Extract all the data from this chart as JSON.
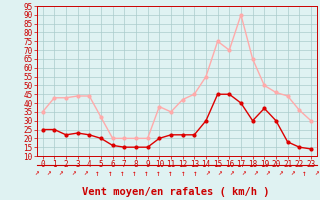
{
  "hours": [
    0,
    1,
    2,
    3,
    4,
    5,
    6,
    7,
    8,
    9,
    10,
    11,
    12,
    13,
    14,
    15,
    16,
    17,
    18,
    19,
    20,
    21,
    22,
    23
  ],
  "rafales": [
    35,
    43,
    43,
    44,
    44,
    32,
    20,
    20,
    20,
    20,
    38,
    35,
    42,
    45,
    55,
    75,
    70,
    90,
    65,
    50,
    46,
    44,
    36,
    30
  ],
  "moyen": [
    25,
    25,
    22,
    23,
    22,
    20,
    16,
    15,
    15,
    15,
    20,
    22,
    22,
    22,
    30,
    45,
    45,
    40,
    30,
    37,
    30,
    18,
    15,
    14
  ],
  "color_rafales": "#ffaaaa",
  "color_moyen": "#dd0000",
  "background": "#dff2f2",
  "grid_color": "#aacccc",
  "xlabel": "Vent moyen/en rafales ( km/h )",
  "ylim_min": 10,
  "ylim_max": 95,
  "xlim_min": 0,
  "xlim_max": 23,
  "yticks": [
    10,
    15,
    20,
    25,
    30,
    35,
    40,
    45,
    50,
    55,
    60,
    65,
    70,
    75,
    80,
    85,
    90,
    95
  ],
  "xlabel_color": "#cc0000",
  "tick_color": "#cc0000",
  "tick_fontsize": 5.5,
  "xlabel_fontsize": 7.5,
  "arrow_chars": [
    "↗",
    "↗",
    "↗",
    "↗",
    "↗",
    "↑",
    "↑",
    "↑",
    "↑",
    "↑",
    "↑",
    "↑",
    "↑",
    "↑",
    "↗",
    "↗",
    "↗",
    "↗",
    "↗",
    "↗",
    "↗",
    "↗",
    "↑",
    "↗"
  ]
}
